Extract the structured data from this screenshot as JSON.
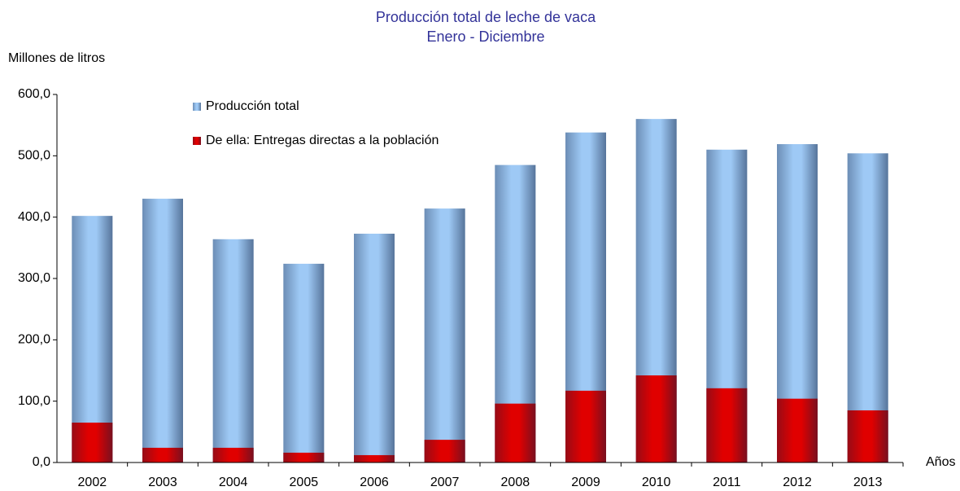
{
  "chart_data": {
    "type": "bar",
    "title": "Producción total de leche de vaca",
    "subtitle": "Enero - Diciembre",
    "y_axis_label": "Millones de litros",
    "x_axis_label": "Años",
    "categories": [
      "2002",
      "2003",
      "2004",
      "2005",
      "2006",
      "2007",
      "2008",
      "2009",
      "2010",
      "2011",
      "2012",
      "2013"
    ],
    "series": [
      {
        "name": "Producción total",
        "color": "#9ec9f5",
        "values": [
          402,
          430,
          364,
          324,
          373,
          414,
          485,
          538,
          560,
          510,
          519,
          504
        ]
      },
      {
        "name": "De ella: Entregas directas a la población",
        "color": "#e00000",
        "values": [
          65,
          24,
          24,
          16,
          12,
          37,
          96,
          117,
          142,
          121,
          104,
          85
        ]
      }
    ],
    "overlap": true,
    "ylim": [
      0,
      600
    ],
    "yticks": [
      {
        "value": 0,
        "label": "0,0"
      },
      {
        "value": 100,
        "label": "100,0"
      },
      {
        "value": 200,
        "label": "200,0"
      },
      {
        "value": 300,
        "label": "300,0"
      },
      {
        "value": 400,
        "label": "400,0"
      },
      {
        "value": 500,
        "label": "500,0"
      },
      {
        "value": 600,
        "label": "600,0"
      }
    ],
    "grid": false
  }
}
